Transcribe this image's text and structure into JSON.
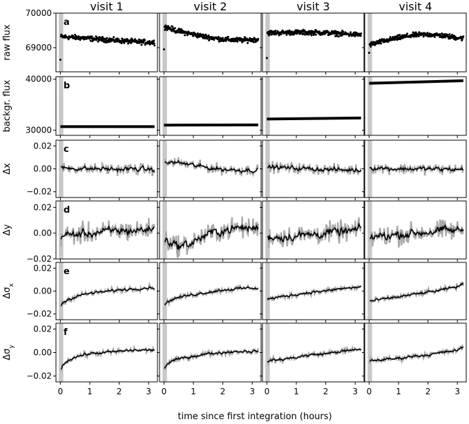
{
  "chart_data": {
    "type": "scatter",
    "columns": [
      "visit 1",
      "visit 2",
      "visit 3",
      "visit 4"
    ],
    "xlabel": "time since first integration (hours)",
    "x_ticks": [
      0,
      1,
      2,
      3
    ],
    "x_range": [
      -0.15,
      3.3
    ],
    "shaded_x_range": [
      -0.05,
      0.1
    ],
    "rows": [
      {
        "letter": "a",
        "ylabel": "raw flux",
        "ylabel_sub": "",
        "ylim": [
          68300,
          70000
        ],
        "y_ticks": [
          69000,
          70000
        ],
        "y_tick_labels": [
          "69000",
          "70000"
        ],
        "style": "points",
        "series": [
          {
            "x": [
              0,
              0.4,
              0.8,
              1.2,
              1.6,
              2.0,
              2.4,
              2.8,
              3.2
            ],
            "y": [
              69320,
              69300,
              69280,
              69250,
              69230,
              69200,
              69180,
              69160,
              69150
            ],
            "outlier": [
              0,
              68650
            ]
          },
          {
            "x": [
              0,
              0.4,
              0.8,
              1.2,
              1.6,
              2.0,
              2.4,
              2.8,
              3.2
            ],
            "y": [
              69620,
              69500,
              69420,
              69350,
              69290,
              69240,
              69220,
              69220,
              69240
            ],
            "outlier": [
              0,
              68950
            ]
          },
          {
            "x": [
              0,
              0.4,
              0.8,
              1.2,
              1.6,
              2.0,
              2.4,
              2.8,
              3.2
            ],
            "y": [
              69430,
              69430,
              69440,
              69440,
              69440,
              69430,
              69410,
              69390,
              69370
            ],
            "outlier": [
              0,
              68700
            ]
          },
          {
            "x": [
              0,
              0.4,
              0.8,
              1.2,
              1.6,
              2.0,
              2.4,
              2.8,
              3.2
            ],
            "y": [
              69080,
              69170,
              69250,
              69320,
              69370,
              69380,
              69360,
              69310,
              69270
            ],
            "outlier": [
              0,
              68850
            ]
          }
        ]
      },
      {
        "letter": "b",
        "ylabel": "backgr. flux",
        "ylabel_sub": "",
        "ylim": [
          29000,
          40500
        ],
        "y_ticks": [
          30000,
          40000
        ],
        "y_tick_labels": [
          "30000",
          "40000"
        ],
        "style": "thickline",
        "series": [
          {
            "x": [
              0,
              3.2
            ],
            "y": [
              30700,
              30700
            ]
          },
          {
            "x": [
              0,
              3.2
            ],
            "y": [
              31000,
              31050
            ]
          },
          {
            "x": [
              0,
              3.2
            ],
            "y": [
              32200,
              32400
            ]
          },
          {
            "x": [
              0,
              3.2
            ],
            "y": [
              39200,
              39700
            ]
          }
        ]
      },
      {
        "letter": "c",
        "ylabel": "Δx",
        "ylabel_sub": "",
        "ylim": [
          -0.025,
          0.025
        ],
        "y_ticks": [
          -0.02,
          0.0,
          0.02
        ],
        "y_tick_labels": [
          "−0.02",
          "0.00",
          "0.02"
        ],
        "style": "noisy",
        "noise": 0.004,
        "series": [
          {
            "x": [
              0,
              0.5,
              1,
              1.5,
              2,
              2.5,
              3,
              3.2
            ],
            "y": [
              0.001,
              0.0005,
              0.0,
              0.0,
              -0.0005,
              0.0,
              -0.0005,
              -0.001
            ]
          },
          {
            "x": [
              0,
              0.3,
              0.6,
              1,
              1.5,
              2,
              2.5,
              3,
              3.2
            ],
            "y": [
              0.004,
              0.006,
              0.005,
              0.003,
              0.001,
              -0.0005,
              -0.001,
              -0.001,
              -0.001
            ]
          },
          {
            "x": [
              0,
              0.5,
              1,
              1.5,
              2,
              2.5,
              3,
              3.2
            ],
            "y": [
              0.002,
              0.001,
              0.0005,
              0.0,
              -0.0005,
              -0.001,
              -0.001,
              -0.001
            ]
          },
          {
            "x": [
              0,
              0.5,
              1,
              1.5,
              2,
              2.5,
              3,
              3.2
            ],
            "y": [
              0.001,
              0.0005,
              0.0,
              0.0,
              0.0,
              -0.0005,
              -0.0005,
              -0.0005
            ]
          }
        ]
      },
      {
        "letter": "d",
        "ylabel": "Δy",
        "ylabel_sub": "",
        "ylim": [
          -0.02,
          0.025
        ],
        "y_ticks": [
          -0.02,
          0.0,
          0.02
        ],
        "y_tick_labels": [
          "−0.02",
          "0.00",
          "0.02"
        ],
        "style": "noisy",
        "noise": 0.007,
        "series": [
          {
            "x": [
              0,
              0.5,
              1,
              1.5,
              2,
              2.5,
              3,
              3.2
            ],
            "y": [
              -0.002,
              -0.001,
              0.0,
              0.001,
              0.002,
              0.002,
              0.003,
              0.004
            ]
          },
          {
            "x": [
              0,
              0.3,
              0.6,
              0.9,
              1.2,
              1.6,
              2,
              2.5,
              3,
              3.2
            ],
            "y": [
              -0.004,
              -0.008,
              -0.01,
              -0.008,
              -0.004,
              0.0,
              0.002,
              0.004,
              0.004,
              0.004
            ]
          },
          {
            "x": [
              0,
              0.5,
              1,
              1.5,
              2,
              2.5,
              3,
              3.2
            ],
            "y": [
              -0.003,
              -0.003,
              -0.002,
              -0.001,
              0.0,
              0.001,
              0.002,
              0.003
            ]
          },
          {
            "x": [
              0,
              0.5,
              1,
              1.5,
              2,
              2.5,
              3,
              3.2
            ],
            "y": [
              -0.003,
              -0.002,
              -0.001,
              0.0,
              0.001,
              0.002,
              0.002,
              0.003
            ]
          }
        ]
      },
      {
        "letter": "e",
        "ylabel": "Δσ",
        "ylabel_sub": "x",
        "ylim": [
          -0.025,
          0.025
        ],
        "y_ticks": [
          -0.02,
          0.0,
          0.02
        ],
        "y_tick_labels": [
          "−0.02",
          "0.00",
          "0.02"
        ],
        "style": "noisy",
        "noise": 0.0022,
        "series": [
          {
            "x": [
              0,
              0.1,
              0.3,
              0.6,
              1,
              1.5,
              2,
              2.5,
              3,
              3.2
            ],
            "y": [
              -0.013,
              -0.01,
              -0.007,
              -0.004,
              -0.002,
              -0.0005,
              0.001,
              0.002,
              0.003,
              0.003
            ]
          },
          {
            "x": [
              0,
              0.1,
              0.3,
              0.6,
              1,
              1.5,
              2,
              2.5,
              3,
              3.2
            ],
            "y": [
              -0.013,
              -0.01,
              -0.007,
              -0.005,
              -0.003,
              -0.001,
              0.001,
              0.002,
              0.003,
              0.002
            ]
          },
          {
            "x": [
              0,
              0.5,
              1,
              1.5,
              2,
              2.5,
              3,
              3.2
            ],
            "y": [
              -0.007,
              -0.005,
              -0.003,
              -0.001,
              0.0,
              0.002,
              0.003,
              0.004
            ]
          },
          {
            "x": [
              0,
              0.5,
              1,
              1.5,
              2,
              2.5,
              3,
              3.2
            ],
            "y": [
              -0.009,
              -0.007,
              -0.005,
              -0.003,
              -0.001,
              0.001,
              0.004,
              0.006
            ]
          }
        ]
      },
      {
        "letter": "f",
        "ylabel": "Δσ",
        "ylabel_sub": "y",
        "ylim": [
          -0.025,
          0.025
        ],
        "y_ticks": [
          -0.02,
          0.0,
          0.02
        ],
        "y_tick_labels": [
          "−0.02",
          "0.00",
          "0.02"
        ],
        "style": "noisy",
        "noise": 0.0022,
        "series": [
          {
            "x": [
              0,
              0.1,
              0.3,
              0.6,
              1,
              1.5,
              2,
              2.5,
              3,
              3.2
            ],
            "y": [
              -0.014,
              -0.01,
              -0.006,
              -0.003,
              -0.001,
              0.0,
              0.001,
              0.002,
              0.002,
              0.002
            ]
          },
          {
            "x": [
              0,
              0.1,
              0.3,
              0.6,
              1,
              1.5,
              2,
              2.5,
              3,
              3.2
            ],
            "y": [
              -0.014,
              -0.01,
              -0.007,
              -0.005,
              -0.003,
              -0.001,
              0.0,
              0.001,
              0.001,
              0.001
            ]
          },
          {
            "x": [
              0,
              0.5,
              1,
              1.5,
              2,
              2.5,
              3,
              3.2
            ],
            "y": [
              -0.007,
              -0.006,
              -0.004,
              -0.002,
              -0.001,
              0.001,
              0.002,
              0.003
            ]
          },
          {
            "x": [
              0,
              0.5,
              1,
              1.5,
              2,
              2.5,
              3,
              3.2
            ],
            "y": [
              -0.007,
              -0.006,
              -0.005,
              -0.003,
              -0.002,
              0.0,
              0.002,
              0.004
            ]
          }
        ]
      }
    ],
    "colors": {
      "data": "#000000",
      "raw": "#a8a8a8",
      "shade": "#c8c8c8"
    }
  }
}
